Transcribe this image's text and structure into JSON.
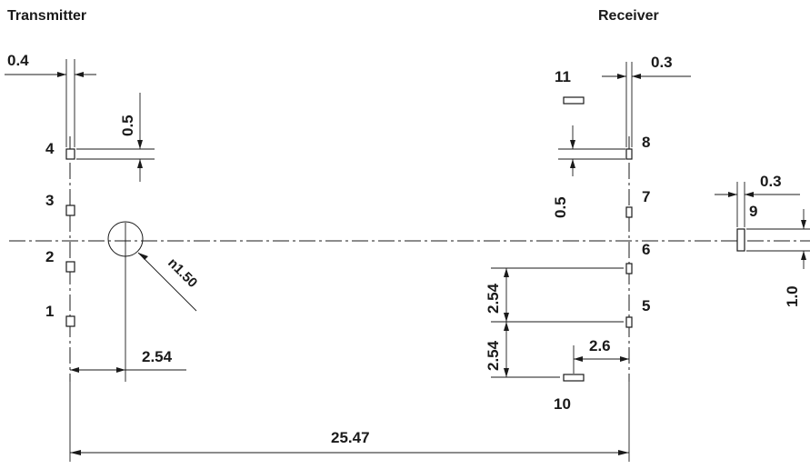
{
  "titles": {
    "transmitter": "Transmitter",
    "receiver": "Receiver"
  },
  "pins": {
    "p1": "1",
    "p2": "2",
    "p3": "3",
    "p4": "4",
    "p5": "5",
    "p6": "6",
    "p7": "7",
    "p8": "8",
    "p9": "9",
    "p10": "10",
    "p11": "11"
  },
  "dimensions": {
    "pad_width_tx": "0.4",
    "pad_height_tx": "0.5",
    "hole_diameter": "n1.50",
    "hole_offset": "2.54",
    "pad_width_rx": "0.3",
    "pad_height_rx": "0.5",
    "pad9_width": "0.3",
    "pad9_height": "1.0",
    "pitch_upper": "2.54",
    "pitch_lower": "2.54",
    "pad10_offset": "2.6",
    "overall_span": "25.47"
  }
}
